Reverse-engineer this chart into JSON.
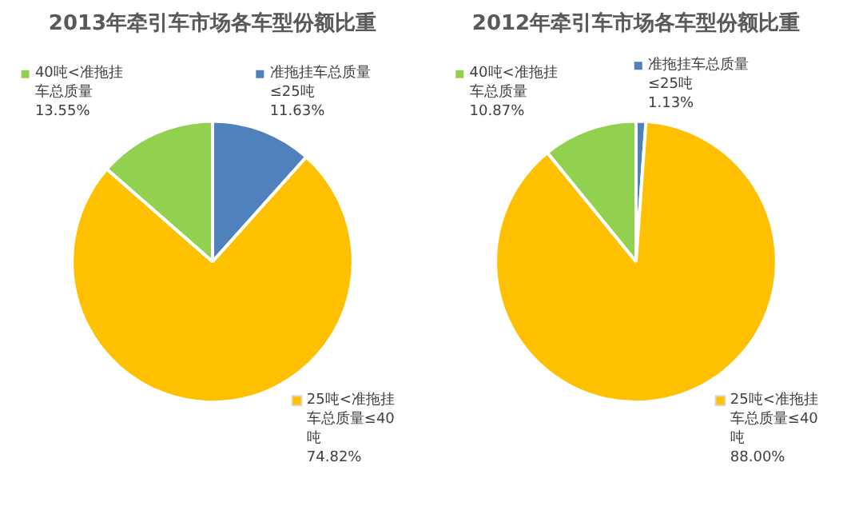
{
  "chart_data": [
    {
      "type": "pie",
      "title": "2013年牵引车市场各车型份额比重",
      "categories": [
        "准拖挂车总质量≤25吨",
        "25吨<准拖挂车总质量≤40吨",
        "40吨<准拖挂车总质量"
      ],
      "values": [
        11.63,
        74.82,
        13.55
      ],
      "value_labels": [
        "11.63%",
        "74.82%",
        "13.55%"
      ],
      "colors": [
        "#4f81bd",
        "#ffc000",
        "#92d050"
      ],
      "legend": "top"
    },
    {
      "type": "pie",
      "title": "2012年牵引车市场各车型份额比重",
      "categories": [
        "准拖挂车总质量≤25吨",
        "25吨<准拖挂车总质量≤40吨",
        "40吨<准拖挂车总质量"
      ],
      "values": [
        1.13,
        88.0,
        10.87
      ],
      "value_labels": [
        "1.13%",
        "88.00%",
        "10.87%"
      ],
      "colors": [
        "#4f81bd",
        "#ffc000",
        "#92d050"
      ],
      "legend": "top"
    }
  ]
}
